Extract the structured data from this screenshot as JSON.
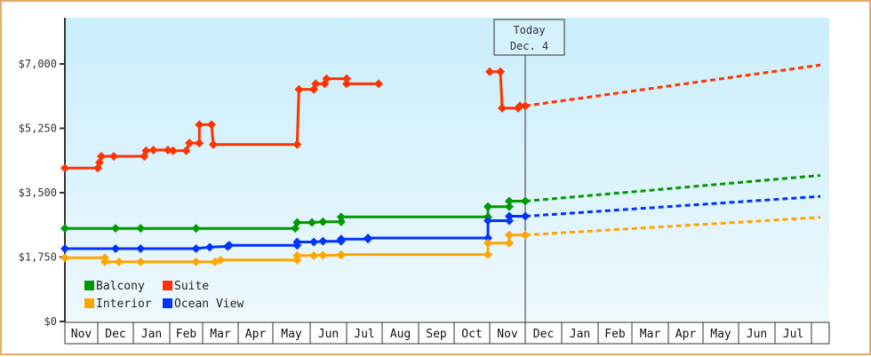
{
  "chart_data": {
    "type": "line",
    "title": "",
    "xlabel": "",
    "ylabel": "",
    "ylim": [
      0,
      8170
    ],
    "y_ticks": [
      "$0",
      "$1,750",
      "$3,500",
      "$5,250",
      "$7,000"
    ],
    "y_tick_values": [
      0,
      1750,
      3500,
      5250,
      7000
    ],
    "x_months": [
      "Nov",
      "Dec",
      "Jan",
      "Feb",
      "Mar",
      "Apr",
      "May",
      "Jun",
      "Jul",
      "Aug",
      "Sep",
      "Oct",
      "Nov",
      "Dec",
      "Jan",
      "Feb",
      "Mar",
      "Apr",
      "May",
      "Jun",
      "Jul",
      ""
    ],
    "today_marker": {
      "line1": "Today",
      "line2": "Dec. 4"
    },
    "legend": [
      {
        "name": "Balcony",
        "color": "#009900"
      },
      {
        "name": "Suite",
        "color": "#ff3300"
      },
      {
        "name": "Interior",
        "color": "#ffa500"
      },
      {
        "name": "Ocean View",
        "color": "#0033ff"
      }
    ],
    "series": [
      {
        "name": "Suite",
        "color": "#ff3300",
        "segments": [
          [
            [
              0,
              4170
            ],
            [
              1.0,
              4170
            ],
            [
              1.05,
              4320
            ],
            [
              1.1,
              4490
            ],
            [
              1.45,
              4490
            ],
            [
              2.3,
              4490
            ],
            [
              2.35,
              4640
            ],
            [
              2.55,
              4660
            ],
            [
              2.95,
              4660
            ],
            [
              3.1,
              4640
            ],
            [
              3.5,
              4640
            ],
            [
              3.6,
              4850
            ],
            [
              3.9,
              4850
            ],
            [
              3.9,
              5350
            ],
            [
              4.25,
              5350
            ],
            [
              4.3,
              4810
            ],
            [
              6.65,
              4810
            ],
            [
              6.7,
              6310
            ],
            [
              7.1,
              6310
            ],
            [
              7.15,
              6460
            ],
            [
              7.4,
              6460
            ],
            [
              7.45,
              6600
            ],
            [
              8.0,
              6600
            ],
            [
              8.0,
              6460
            ],
            [
              8.9,
              6460
            ]
          ],
          [
            [
              12.0,
              6790
            ],
            [
              12.3,
              6790
            ],
            [
              12.35,
              5800
            ],
            [
              12.8,
              5800
            ],
            [
              12.85,
              5860
            ],
            [
              13.0,
              5860
            ]
          ]
        ],
        "forecast": [
          [
            13.0,
            5860
          ],
          [
            21.5,
            6970
          ]
        ]
      },
      {
        "name": "Balcony",
        "color": "#009900",
        "segments": [
          [
            [
              0,
              2530
            ],
            [
              1.5,
              2530
            ],
            [
              2.2,
              2530
            ],
            [
              3.8,
              2530
            ],
            [
              6.6,
              2530
            ],
            [
              6.65,
              2690
            ],
            [
              7.05,
              2690
            ],
            [
              7.35,
              2710
            ],
            [
              7.85,
              2710
            ],
            [
              7.85,
              2840
            ],
            [
              11.95,
              2840
            ],
            [
              11.95,
              3120
            ],
            [
              12.55,
              3120
            ],
            [
              12.55,
              3270
            ],
            [
              13.0,
              3270
            ]
          ]
        ],
        "forecast": [
          [
            13.0,
            3270
          ],
          [
            21.5,
            3970
          ]
        ]
      },
      {
        "name": "Ocean View",
        "color": "#0033ff",
        "segments": [
          [
            [
              0,
              1980
            ],
            [
              1.5,
              1980
            ],
            [
              2.2,
              1980
            ],
            [
              3.8,
              1980
            ],
            [
              4.2,
              2020
            ],
            [
              4.7,
              2040
            ],
            [
              4.75,
              2070
            ],
            [
              6.65,
              2070
            ],
            [
              6.65,
              2160
            ],
            [
              7.1,
              2160
            ],
            [
              7.35,
              2180
            ],
            [
              7.85,
              2180
            ],
            [
              7.85,
              2240
            ],
            [
              8.6,
              2240
            ],
            [
              8.6,
              2270
            ],
            [
              11.95,
              2270
            ],
            [
              11.95,
              2740
            ],
            [
              12.55,
              2740
            ],
            [
              12.55,
              2860
            ],
            [
              13.0,
              2860
            ]
          ]
        ],
        "forecast": [
          [
            13.0,
            2860
          ],
          [
            21.5,
            3400
          ]
        ]
      },
      {
        "name": "Interior",
        "color": "#ffa500",
        "segments": [
          [
            [
              0,
              1730
            ],
            [
              1.2,
              1730
            ],
            [
              1.2,
              1620
            ],
            [
              1.6,
              1620
            ],
            [
              2.2,
              1620
            ],
            [
              3.8,
              1620
            ],
            [
              4.35,
              1620
            ],
            [
              4.5,
              1670
            ],
            [
              6.65,
              1670
            ],
            [
              6.65,
              1790
            ],
            [
              7.1,
              1790
            ],
            [
              7.35,
              1800
            ],
            [
              7.85,
              1800
            ],
            [
              7.85,
              1820
            ],
            [
              11.95,
              1820
            ],
            [
              11.95,
              2130
            ],
            [
              12.55,
              2130
            ],
            [
              12.55,
              2350
            ],
            [
              13.0,
              2350
            ]
          ]
        ],
        "forecast": [
          [
            13.0,
            2350
          ],
          [
            21.5,
            2830
          ]
        ]
      }
    ]
  }
}
